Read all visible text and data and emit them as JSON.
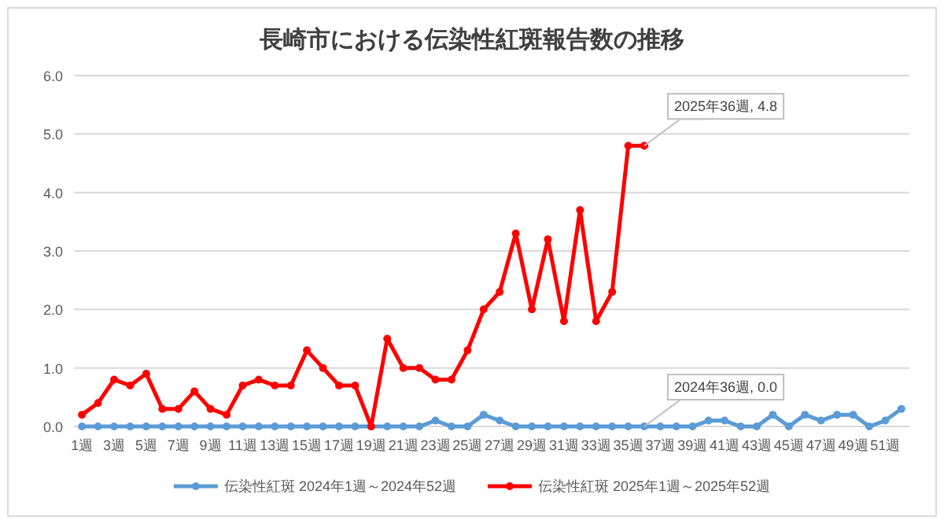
{
  "chart_data": {
    "type": "line",
    "title": "長崎市における伝染性紅斑報告数の推移",
    "categories": [
      "1週",
      null,
      "3週",
      null,
      "5週",
      null,
      "7週",
      null,
      "9週",
      null,
      "11週",
      null,
      "13週",
      null,
      "15週",
      null,
      "17週",
      null,
      "19週",
      null,
      "21週",
      null,
      "23週",
      null,
      "25週",
      null,
      "27週",
      null,
      "29週",
      null,
      "31週",
      null,
      "33週",
      null,
      "35週",
      null,
      "37週",
      null,
      "39週",
      null,
      "41週",
      null,
      "43週",
      null,
      "45週",
      null,
      "47週",
      null,
      "49週",
      null,
      "51週",
      null
    ],
    "series": [
      {
        "name": "伝染性紅斑 2024年1週～2024年52週",
        "color": "#5b9bd5",
        "values": [
          0,
          0,
          0,
          0,
          0,
          0,
          0,
          0,
          0,
          0,
          0,
          0,
          0,
          0,
          0,
          0,
          0,
          0,
          0,
          0,
          0,
          0,
          0.1,
          0,
          0,
          0.2,
          0.1,
          0,
          0,
          0,
          0,
          0,
          0,
          0,
          0,
          0,
          0,
          0,
          0,
          0.1,
          0.1,
          0,
          0,
          0.2,
          0,
          0.2,
          0.1,
          0.2,
          0.2,
          0,
          0.1,
          0.3
        ],
        "value_labels": [
          null,
          null,
          null,
          null,
          null,
          null,
          null,
          null,
          null,
          null,
          null,
          null,
          null,
          null,
          null,
          null,
          null,
          null,
          null,
          null,
          null,
          null,
          null,
          null,
          null,
          null,
          null,
          null,
          null,
          null,
          null,
          null,
          null,
          null,
          null,
          "2024年36週, 0.0",
          null,
          null,
          null,
          null,
          null,
          null,
          null,
          null,
          null,
          null,
          null,
          null,
          null,
          null,
          null,
          null
        ]
      },
      {
        "name": "伝染性紅斑 2025年1週～2025年52週",
        "color": "#ff0000",
        "values": [
          0.2,
          0.4,
          0.8,
          0.7,
          0.9,
          0.3,
          0.3,
          0.6,
          0.3,
          0.2,
          0.7,
          0.8,
          0.7,
          0.7,
          1.3,
          1.0,
          0.7,
          0.7,
          0.0,
          1.5,
          1.0,
          1.0,
          0.8,
          0.8,
          1.3,
          2.0,
          2.3,
          3.3,
          2.0,
          3.2,
          1.8,
          3.7,
          1.8,
          2.3,
          4.8,
          4.8,
          null,
          null,
          null,
          null,
          null,
          null,
          null,
          null,
          null,
          null,
          null,
          null,
          null,
          null,
          null,
          null
        ],
        "value_labels": [
          null,
          null,
          null,
          null,
          null,
          null,
          null,
          null,
          null,
          null,
          null,
          null,
          null,
          null,
          null,
          null,
          null,
          null,
          null,
          null,
          null,
          null,
          null,
          null,
          null,
          null,
          null,
          null,
          null,
          null,
          null,
          null,
          null,
          null,
          null,
          "2025年36週, 4.8",
          null,
          null,
          null,
          null,
          null,
          null,
          null,
          null,
          null,
          null,
          null,
          null,
          null,
          null,
          null,
          null
        ]
      }
    ],
    "ylim": [
      0,
      6
    ],
    "yticks": [
      {
        "value": 0,
        "label": "0.0"
      },
      {
        "value": 1,
        "label": "1.0"
      },
      {
        "value": 2,
        "label": "2.0"
      },
      {
        "value": 3,
        "label": "3.0"
      },
      {
        "value": 4,
        "label": "4.0"
      },
      {
        "value": 5,
        "label": "5.0"
      },
      {
        "value": 6,
        "label": "6.0"
      }
    ],
    "grid": "y",
    "legend": "bottom",
    "marker": "circle",
    "line_style": "solid"
  }
}
